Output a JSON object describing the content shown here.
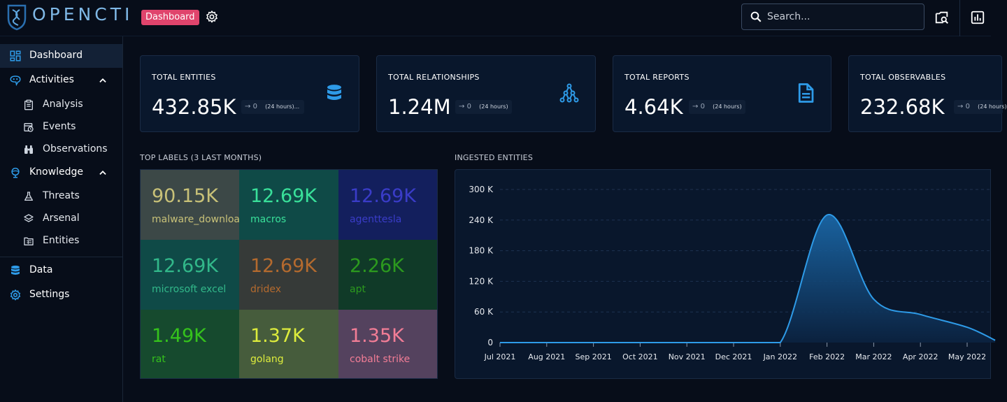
{
  "header": {
    "logo_text": "OPENCTI",
    "badge": "Dashboard",
    "search_placeholder": "Search..."
  },
  "sidebar": {
    "items": [
      {
        "label": "Dashboard"
      },
      {
        "label": "Activities"
      },
      {
        "label": "Analysis"
      },
      {
        "label": "Events"
      },
      {
        "label": "Observations"
      },
      {
        "label": "Knowledge"
      },
      {
        "label": "Threats"
      },
      {
        "label": "Arsenal"
      },
      {
        "label": "Entities"
      },
      {
        "label": "Data"
      },
      {
        "label": "Settings"
      }
    ]
  },
  "cards": [
    {
      "title": "TOTAL ENTITIES",
      "value": "432.85K",
      "delta": "0",
      "period": "(24 hours)..."
    },
    {
      "title": "TOTAL RELATIONSHIPS",
      "value": "1.24M",
      "delta": "0",
      "period": "(24 hours)"
    },
    {
      "title": "TOTAL REPORTS",
      "value": "4.64K",
      "delta": "0",
      "period": "(24 hours)"
    },
    {
      "title": "TOTAL OBSERVABLES",
      "value": "232.68K",
      "delta": "0",
      "period": "(24 hours)"
    }
  ],
  "top_labels": {
    "title": "TOP LABELS (3 LAST MONTHS)",
    "tiles": [
      {
        "value": "90.15K",
        "label": "malware_downloa...",
        "bg": "#3c4847",
        "fg": "#c8c178"
      },
      {
        "value": "12.69K",
        "label": "macros",
        "bg": "#0f4a47",
        "fg": "#39e09a"
      },
      {
        "value": "12.69K",
        "label": "agenttesla",
        "bg": "#131f5d",
        "fg": "#3a3cc8"
      },
      {
        "value": "12.69K",
        "label": "microsoft excel",
        "bg": "#0f4a47",
        "fg": "#32b88a"
      },
      {
        "value": "12.69K",
        "label": "dridex",
        "bg": "#363a38",
        "fg": "#b46a2e"
      },
      {
        "value": "2.26K",
        "label": "apt",
        "bg": "#103a28",
        "fg": "#2c9a1e"
      },
      {
        "value": "1.49K",
        "label": "rat",
        "bg": "#164a2e",
        "fg": "#35c21c"
      },
      {
        "value": "1.37K",
        "label": "golang",
        "bg": "#465c3c",
        "fg": "#ddec3c"
      },
      {
        "value": "1.35K",
        "label": "cobalt strike",
        "bg": "#54425e",
        "fg": "#f27d96"
      }
    ]
  },
  "ingested": {
    "title": "INGESTED ENTITIES"
  },
  "chart_data": {
    "type": "area",
    "title": "INGESTED ENTITIES",
    "categories": [
      "Jul 2021",
      "Aug 2021",
      "Sep 2021",
      "Oct 2021",
      "Nov 2021",
      "Dec 2021",
      "Jan 2022",
      "Feb 2022",
      "Mar 2022",
      "Apr 2022",
      "May 2022"
    ],
    "values": [
      0,
      0,
      0,
      0,
      0,
      0,
      0,
      250000,
      85000,
      55000,
      30000
    ],
    "yticks": [
      "0",
      "60 K",
      "120 K",
      "180 K",
      "240 K",
      "300 K"
    ],
    "ylim": [
      0,
      300000
    ],
    "color": "#2e9be8"
  }
}
